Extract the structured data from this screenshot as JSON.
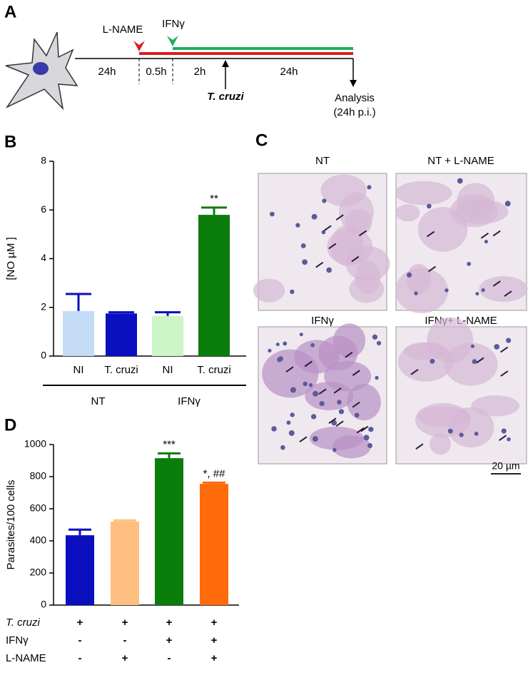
{
  "panel_a": {
    "label": "A",
    "treatment_1": "L-NAME",
    "treatment_2": "IFNγ",
    "durations": [
      "24h",
      "0.5h",
      "2h",
      "24h"
    ],
    "infection": "T. cruzi",
    "analysis": "Analysis",
    "analysis_note": "(24h p.i.)"
  },
  "panel_c": {
    "label": "C",
    "titles": [
      "NT",
      "NT + L-NAME",
      "IFNγ",
      "IFNγ+ L-NAME"
    ],
    "scale_bar": "20 µm"
  },
  "chart_data": [
    {
      "type": "bar",
      "panel": "B",
      "ylabel": "[NO µM ]",
      "categories": [
        "NI",
        "T. cruzi",
        "NI",
        "T. cruzi"
      ],
      "values": [
        1.85,
        1.75,
        1.65,
        5.8
      ],
      "errors": [
        0.7,
        0.05,
        0.15,
        0.3
      ],
      "colors": [
        "#c5dcf7",
        "#0a0fbf",
        "#ccf5c8",
        "#0b7d0b"
      ],
      "annotations": [
        null,
        null,
        null,
        "**"
      ],
      "groups": [
        "NT",
        "IFNγ"
      ],
      "ylim": [
        0,
        8
      ],
      "yticks": [
        0,
        2,
        4,
        6,
        8
      ]
    },
    {
      "type": "bar",
      "panel": "D",
      "ylabel": "Parasites/100 cells",
      "values": [
        435,
        520,
        915,
        755
      ],
      "errors": [
        35,
        8,
        30,
        8
      ],
      "colors": [
        "#0a0fbf",
        "#ffbf80",
        "#0b7d0b",
        "#ff6a0a"
      ],
      "annotations": [
        null,
        null,
        "***",
        "*, ##"
      ],
      "conditions": [
        {
          "label": "T. cruzi",
          "signs": [
            "+",
            "+",
            "+",
            "+"
          ]
        },
        {
          "label": "IFNγ",
          "signs": [
            "-",
            "-",
            "+",
            "+"
          ]
        },
        {
          "label": "L-NAME",
          "signs": [
            "-",
            "+",
            "-",
            "+"
          ]
        }
      ],
      "ylim": [
        0,
        1000
      ],
      "yticks": [
        0,
        200,
        400,
        600,
        800,
        1000
      ]
    }
  ]
}
